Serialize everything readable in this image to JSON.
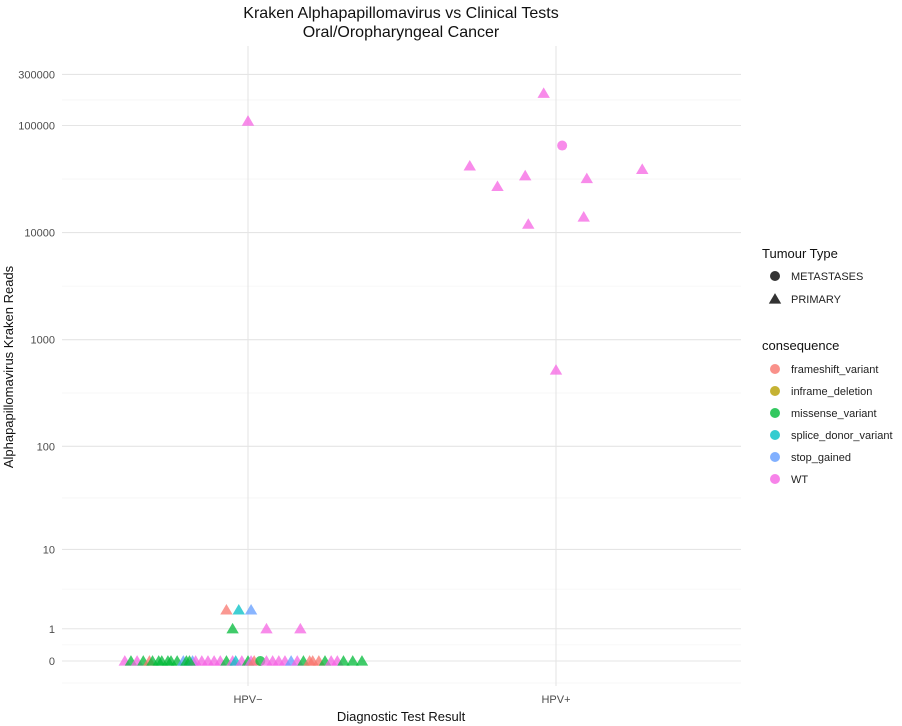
{
  "chart_data": {
    "type": "scatter",
    "title": "Kraken Alphapapillomavirus vs Clinical Tests",
    "subtitle": "Oral/Oropharyngeal Cancer",
    "xlabel": "Diagnostic Test Result",
    "ylabel": "Alphapapillomavirus Kraken Reads",
    "y_scale": "pseudo-log10 (log10(y+1))",
    "grid": true,
    "legend_position": "right",
    "categories": [
      "HPV−",
      "HPV+"
    ],
    "y_ticks": [
      {
        "value": 0,
        "label": "0"
      },
      {
        "value": 1,
        "label": "1"
      },
      {
        "value": 10,
        "label": "10"
      },
      {
        "value": 100,
        "label": "100"
      },
      {
        "value": 1000,
        "label": "1000"
      },
      {
        "value": 10000,
        "label": "10000"
      },
      {
        "value": 100000,
        "label": "100000"
      },
      {
        "value": 300000,
        "label": "300000"
      }
    ],
    "legends": {
      "shape": {
        "title": "Tumour Type",
        "items": [
          {
            "label": "METASTASES",
            "shape": "circle"
          },
          {
            "label": "PRIMARY",
            "shape": "triangle"
          }
        ]
      },
      "color": {
        "title": "consequence",
        "items": [
          {
            "label": "frameshift_variant",
            "color": "#F8766D"
          },
          {
            "label": "inframe_deletion",
            "color": "#B79F00"
          },
          {
            "label": "missense_variant",
            "color": "#00BA38"
          },
          {
            "label": "splice_donor_variant",
            "color": "#00BFC4"
          },
          {
            "label": "stop_gained",
            "color": "#619CFF"
          },
          {
            "label": "WT",
            "color": "#F564E3"
          }
        ]
      }
    },
    "points": [
      {
        "x": "HPV−",
        "jitter": -0.4,
        "y": 0,
        "shape": "triangle",
        "consequence": "WT"
      },
      {
        "x": "HPV−",
        "jitter": -0.38,
        "y": 0,
        "shape": "triangle",
        "consequence": "missense_variant"
      },
      {
        "x": "HPV−",
        "jitter": -0.36,
        "y": 0,
        "shape": "triangle",
        "consequence": "WT"
      },
      {
        "x": "HPV−",
        "jitter": -0.34,
        "y": 0,
        "shape": "triangle",
        "consequence": "missense_variant"
      },
      {
        "x": "HPV−",
        "jitter": -0.32,
        "y": 0,
        "shape": "triangle",
        "consequence": "frameshift_variant"
      },
      {
        "x": "HPV−",
        "jitter": -0.31,
        "y": 0,
        "shape": "triangle",
        "consequence": "missense_variant"
      },
      {
        "x": "HPV−",
        "jitter": -0.29,
        "y": 0,
        "shape": "triangle",
        "consequence": "missense_variant"
      },
      {
        "x": "HPV−",
        "jitter": -0.28,
        "y": 0,
        "shape": "triangle",
        "consequence": "missense_variant"
      },
      {
        "x": "HPV−",
        "jitter": -0.26,
        "y": 0,
        "shape": "triangle",
        "consequence": "missense_variant"
      },
      {
        "x": "HPV−",
        "jitter": -0.25,
        "y": 0,
        "shape": "triangle",
        "consequence": "missense_variant"
      },
      {
        "x": "HPV−",
        "jitter": -0.23,
        "y": 0,
        "shape": "triangle",
        "consequence": "missense_variant"
      },
      {
        "x": "HPV−",
        "jitter": -0.21,
        "y": 0,
        "shape": "triangle",
        "consequence": "stop_gained"
      },
      {
        "x": "HPV−",
        "jitter": -0.2,
        "y": 0,
        "shape": "triangle",
        "consequence": "missense_variant"
      },
      {
        "x": "HPV−",
        "jitter": -0.18,
        "y": 0,
        "shape": "triangle",
        "consequence": "stop_gained"
      },
      {
        "x": "HPV−",
        "jitter": -0.17,
        "y": 0,
        "shape": "triangle",
        "consequence": "WT"
      },
      {
        "x": "HPV−",
        "jitter": -0.19,
        "y": 0,
        "shape": "triangle",
        "consequence": "missense_variant"
      },
      {
        "x": "HPV−",
        "jitter": -0.15,
        "y": 0,
        "shape": "triangle",
        "consequence": "WT"
      },
      {
        "x": "HPV−",
        "jitter": -0.13,
        "y": 0,
        "shape": "triangle",
        "consequence": "WT"
      },
      {
        "x": "HPV−",
        "jitter": -0.11,
        "y": 0,
        "shape": "triangle",
        "consequence": "WT"
      },
      {
        "x": "HPV−",
        "jitter": -0.09,
        "y": 0,
        "shape": "triangle",
        "consequence": "WT"
      },
      {
        "x": "HPV−",
        "jitter": -0.07,
        "y": 0,
        "shape": "triangle",
        "consequence": "missense_variant"
      },
      {
        "x": "HPV−",
        "jitter": -0.05,
        "y": 0,
        "shape": "triangle",
        "consequence": "WT"
      },
      {
        "x": "HPV−",
        "jitter": -0.04,
        "y": 0,
        "shape": "triangle",
        "consequence": "splice_donor_variant"
      },
      {
        "x": "HPV−",
        "jitter": -0.02,
        "y": 0,
        "shape": "triangle",
        "consequence": "WT"
      },
      {
        "x": "HPV−",
        "jitter": 0.0,
        "y": 0,
        "shape": "triangle",
        "consequence": "missense_variant"
      },
      {
        "x": "HPV−",
        "jitter": 0.01,
        "y": 0,
        "shape": "triangle",
        "consequence": "WT"
      },
      {
        "x": "HPV−",
        "jitter": 0.02,
        "y": 0,
        "shape": "triangle",
        "consequence": "frameshift_variant"
      },
      {
        "x": "HPV−",
        "jitter": 0.04,
        "y": 0,
        "shape": "circle",
        "consequence": "missense_variant"
      },
      {
        "x": "HPV−",
        "jitter": 0.06,
        "y": 0,
        "shape": "triangle",
        "consequence": "WT"
      },
      {
        "x": "HPV−",
        "jitter": 0.08,
        "y": 0,
        "shape": "triangle",
        "consequence": "WT"
      },
      {
        "x": "HPV−",
        "jitter": 0.1,
        "y": 0,
        "shape": "triangle",
        "consequence": "WT"
      },
      {
        "x": "HPV−",
        "jitter": 0.12,
        "y": 0,
        "shape": "triangle",
        "consequence": "WT"
      },
      {
        "x": "HPV−",
        "jitter": 0.14,
        "y": 0,
        "shape": "triangle",
        "consequence": "stop_gained"
      },
      {
        "x": "HPV−",
        "jitter": 0.16,
        "y": 0,
        "shape": "triangle",
        "consequence": "WT"
      },
      {
        "x": "HPV−",
        "jitter": 0.18,
        "y": 0,
        "shape": "triangle",
        "consequence": "missense_variant"
      },
      {
        "x": "HPV−",
        "jitter": 0.2,
        "y": 0,
        "shape": "triangle",
        "consequence": "frameshift_variant"
      },
      {
        "x": "HPV−",
        "jitter": 0.21,
        "y": 0,
        "shape": "triangle",
        "consequence": "frameshift_variant"
      },
      {
        "x": "HPV−",
        "jitter": 0.23,
        "y": 0,
        "shape": "triangle",
        "consequence": "frameshift_variant"
      },
      {
        "x": "HPV−",
        "jitter": 0.25,
        "y": 0,
        "shape": "triangle",
        "consequence": "missense_variant"
      },
      {
        "x": "HPV−",
        "jitter": 0.27,
        "y": 0,
        "shape": "triangle",
        "consequence": "WT"
      },
      {
        "x": "HPV−",
        "jitter": 0.29,
        "y": 0,
        "shape": "triangle",
        "consequence": "WT"
      },
      {
        "x": "HPV−",
        "jitter": 0.31,
        "y": 0,
        "shape": "triangle",
        "consequence": "missense_variant"
      },
      {
        "x": "HPV−",
        "jitter": 0.34,
        "y": 0,
        "shape": "triangle",
        "consequence": "missense_variant"
      },
      {
        "x": "HPV−",
        "jitter": 0.37,
        "y": 0,
        "shape": "triangle",
        "consequence": "missense_variant"
      },
      {
        "x": "HPV−",
        "jitter": -0.07,
        "y": 2,
        "shape": "triangle",
        "consequence": "frameshift_variant"
      },
      {
        "x": "HPV−",
        "jitter": -0.03,
        "y": 2,
        "shape": "triangle",
        "consequence": "splice_donor_variant"
      },
      {
        "x": "HPV−",
        "jitter": 0.01,
        "y": 2,
        "shape": "triangle",
        "consequence": "stop_gained"
      },
      {
        "x": "HPV−",
        "jitter": -0.05,
        "y": 1,
        "shape": "triangle",
        "consequence": "missense_variant"
      },
      {
        "x": "HPV−",
        "jitter": 0.06,
        "y": 1,
        "shape": "triangle",
        "consequence": "WT"
      },
      {
        "x": "HPV−",
        "jitter": 0.17,
        "y": 1,
        "shape": "triangle",
        "consequence": "WT"
      },
      {
        "x": "HPV−",
        "jitter": 0.0,
        "y": 110000,
        "shape": "triangle",
        "consequence": "WT"
      },
      {
        "x": "HPV+",
        "jitter": -0.04,
        "y": 200000,
        "shape": "triangle",
        "consequence": "WT"
      },
      {
        "x": "HPV+",
        "jitter": 0.02,
        "y": 65000,
        "shape": "circle",
        "consequence": "WT"
      },
      {
        "x": "HPV+",
        "jitter": -0.28,
        "y": 42000,
        "shape": "triangle",
        "consequence": "WT"
      },
      {
        "x": "HPV+",
        "jitter": -0.19,
        "y": 27000,
        "shape": "triangle",
        "consequence": "WT"
      },
      {
        "x": "HPV+",
        "jitter": -0.1,
        "y": 34000,
        "shape": "triangle",
        "consequence": "WT"
      },
      {
        "x": "HPV+",
        "jitter": 0.1,
        "y": 32000,
        "shape": "triangle",
        "consequence": "WT"
      },
      {
        "x": "HPV+",
        "jitter": 0.28,
        "y": 39000,
        "shape": "triangle",
        "consequence": "WT"
      },
      {
        "x": "HPV+",
        "jitter": -0.09,
        "y": 12000,
        "shape": "triangle",
        "consequence": "WT"
      },
      {
        "x": "HPV+",
        "jitter": 0.09,
        "y": 14000,
        "shape": "triangle",
        "consequence": "WT"
      },
      {
        "x": "HPV+",
        "jitter": 0.0,
        "y": 520,
        "shape": "triangle",
        "consequence": "WT"
      }
    ]
  }
}
